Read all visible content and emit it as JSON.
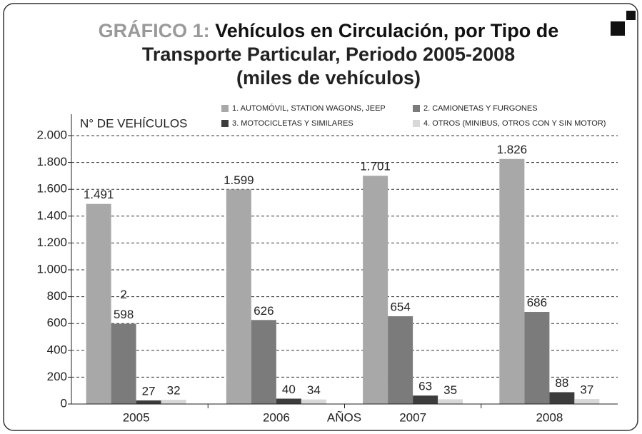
{
  "chart_data": {
    "type": "bar",
    "title_label": "GRÁFICO 1:",
    "title": [
      "Vehículos en Circulación, por Tipo de",
      "Transporte Particular, Periodo 2005-2008"
    ],
    "subtitle": "(miles de vehículos)",
    "y_label": "N° DE VEHÍCULOS",
    "x_label": "AÑOS",
    "categories": [
      "2005",
      "2006",
      "2007",
      "2008"
    ],
    "series": [
      {
        "name": "1. AUTOMÓVIL, STATION WAGONS, JEEP",
        "color": "#a8a8a8",
        "values": [
          1491,
          1599,
          1701,
          1826
        ],
        "value_labels": [
          "1.491",
          "1.599",
          "1.701",
          "1.826"
        ]
      },
      {
        "name": "2. CAMIONETAS Y FURGONES",
        "color": "#7b7b7b",
        "values": [
          598,
          626,
          654,
          686
        ]
      },
      {
        "name": "3. MOTOCICLETAS Y SIMILARES",
        "color": "#3c3c3c",
        "values": [
          27,
          40,
          63,
          88
        ]
      },
      {
        "name": "4. OTROS (MINIBUS, OTROS CON Y SIN MOTOR)",
        "color": "#d8d8d8",
        "values": [
          32,
          34,
          35,
          37
        ]
      }
    ],
    "annotations": [
      "2"
    ],
    "ylim": [
      0,
      2000
    ],
    "yticks": [
      0,
      200,
      400,
      600,
      800,
      {
        "value": 1000,
        "label": "1.000"
      },
      {
        "value": 1200,
        "label": "1.200"
      },
      {
        "value": 1400,
        "label": "1.400"
      },
      {
        "value": 1600,
        "label": "1.600"
      },
      {
        "value": 1800,
        "label": "1.800"
      },
      {
        "value": 2000,
        "label": "2.000"
      }
    ],
    "grid": true
  }
}
